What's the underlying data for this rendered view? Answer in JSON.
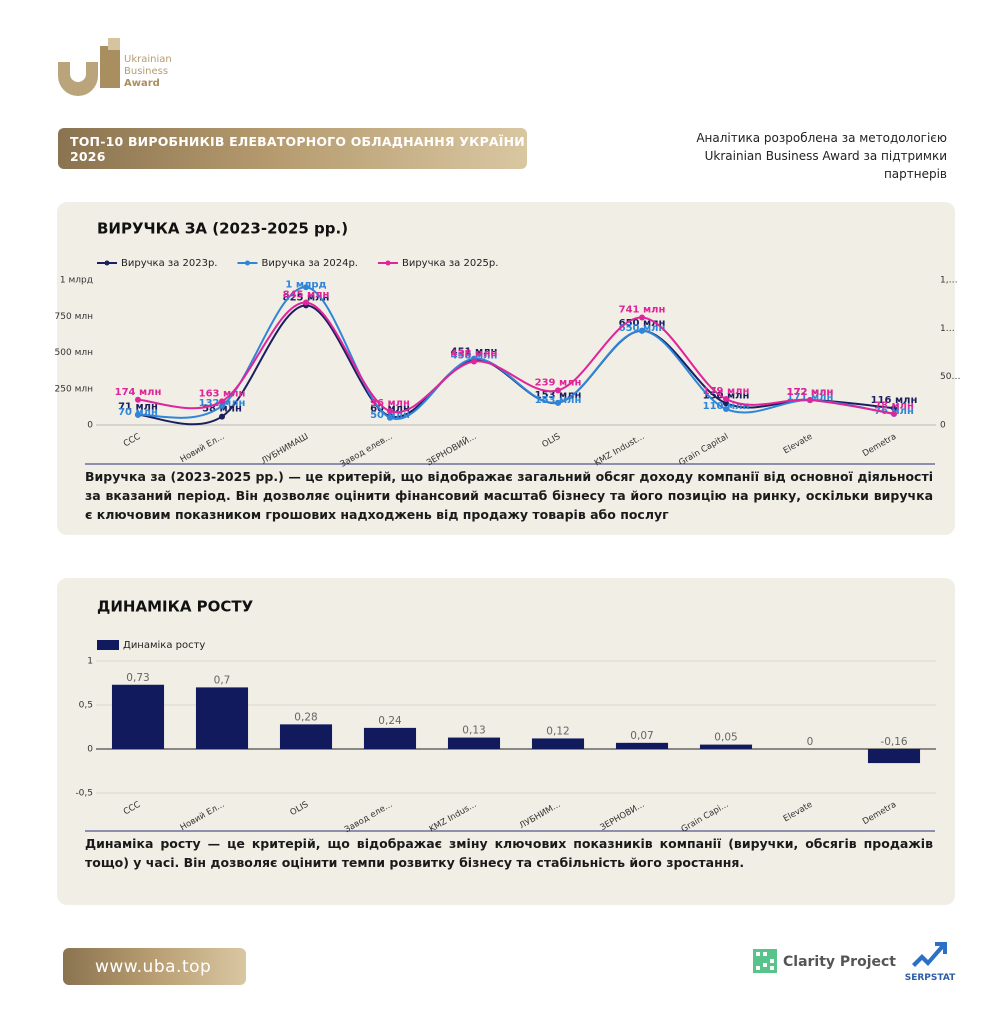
{
  "logo": {
    "line1": "Ukrainian",
    "line2": "Business",
    "line3": "Award"
  },
  "header": {
    "title": "ТОП-10 ВИРОБНИКІВ ЕЛЕВАТОРНОГО ОБЛАДНАННЯ УКРАЇНИ 2026",
    "note": "Аналітика розроблена за методологією Ukrainian Business Award за підтримки партнерів"
  },
  "chart_data": [
    {
      "type": "line",
      "title": "ВИРУЧКА ЗА (2023-2025 рр.)",
      "categories": [
        "CCC",
        "Новий Ел...",
        "ЛУБНИМАШ",
        "Завод елев...",
        "ЗЕРНОВИЙ...",
        "OLIS",
        "KMZ Indust...",
        "Grain Capital",
        "Elevate",
        "Demetra"
      ],
      "series": [
        {
          "name": "Виручка за 2023р.",
          "color": "#1b1f5f",
          "values": [
            71,
            58,
            825,
            60,
            451,
            153,
            650,
            150,
            172,
            116
          ],
          "value_labels": [
            "71 млн",
            "58 млн",
            "825 млн",
            "60 млн",
            "451 млн",
            "153 млн",
            "650 млн",
            "150 млн",
            "172 млн",
            "116 млн"
          ]
        },
        {
          "name": "Виручка за 2024р.",
          "color": "#2f86d8",
          "values": [
            70,
            132,
            950,
            50,
            458,
            153,
            650,
            110,
            171,
            76
          ],
          "value_labels": [
            "70 млн",
            "132 млн",
            "1 млрд",
            "50 млн",
            "458 млн",
            "153 млн",
            "650 млн",
            "110 млн",
            "171 млн",
            "76 млн"
          ]
        },
        {
          "name": "Виручка за 2025р.",
          "color": "#e0249a",
          "values": [
            174,
            163,
            845,
            96,
            438,
            239,
            741,
            179,
            172,
            78
          ],
          "value_labels": [
            "174 млн",
            "163 млн",
            "845 млн",
            "96 млн",
            "438 млн",
            "239 млн",
            "741 млн",
            "179 млн",
            "172 млн",
            "78 млн"
          ]
        }
      ],
      "ylim": [
        0,
        1000
      ],
      "yticks": [
        0,
        {
          "value": 250,
          "label": "250 млн"
        },
        {
          "value": 500,
          "label": "500 млн"
        },
        {
          "value": 750,
          "label": "750 млн"
        },
        {
          "value": 1000,
          "label": "1 млрд"
        }
      ],
      "y2lim": [
        0,
        1500
      ],
      "y2ticks": [
        0,
        {
          "value": 500,
          "label": "50…"
        },
        {
          "value": 1000,
          "label": "1…"
        },
        {
          "value": 1500,
          "label": "1,…"
        }
      ],
      "grid": false,
      "legend": "top",
      "description": "Виручка за (2023-2025 рр.) — це критерій, що відображає загальний обсяг доходу компанії від основної діяльності за вказаний період. Він дозволяє оцінити фінансовий масштаб бізнесу та його позицію на ринку, оскільки виручка є ключовим показником грошових надходжень від продажу товарів або послуг"
    },
    {
      "type": "bar",
      "title": "ДИНАМІКА РОСТУ",
      "categories": [
        "CCC",
        "Новий Ел...",
        "OLIS",
        "Завод еле...",
        "KMZ Indus...",
        "ЛУБНИМ...",
        "ЗЕРНОВИ...",
        "Grain Capi...",
        "Elevate",
        "Demetra"
      ],
      "series": [
        {
          "name": "Динаміка росту",
          "color": "#101a5c",
          "values": [
            0.73,
            0.7,
            0.28,
            0.24,
            0.13,
            0.12,
            0.07,
            0.05,
            0,
            -0.16
          ],
          "value_labels": [
            "0,73",
            "0,7",
            "0,28",
            "0,24",
            "0,13",
            "0,12",
            "0,07",
            "0,05",
            "0",
            "-0,16"
          ]
        }
      ],
      "ylim": [
        -0.5,
        1
      ],
      "yticks": [
        1,
        {
          "value": 0.5,
          "label": "0,5"
        },
        0,
        {
          "value": -0.5,
          "label": "-0,5"
        }
      ],
      "grid": true,
      "legend": "top",
      "description": "Динаміка росту — це критерій, що відображає зміну ключових показників компанії (виручки, обсягів продажів тощо) у часі. Він дозволяє оцінити темпи розвитку бізнесу та стабільність його зростання."
    }
  ],
  "footer": {
    "url": "www.uba.top",
    "partners": [
      "Clarity Project",
      "SERPSTAT"
    ]
  }
}
